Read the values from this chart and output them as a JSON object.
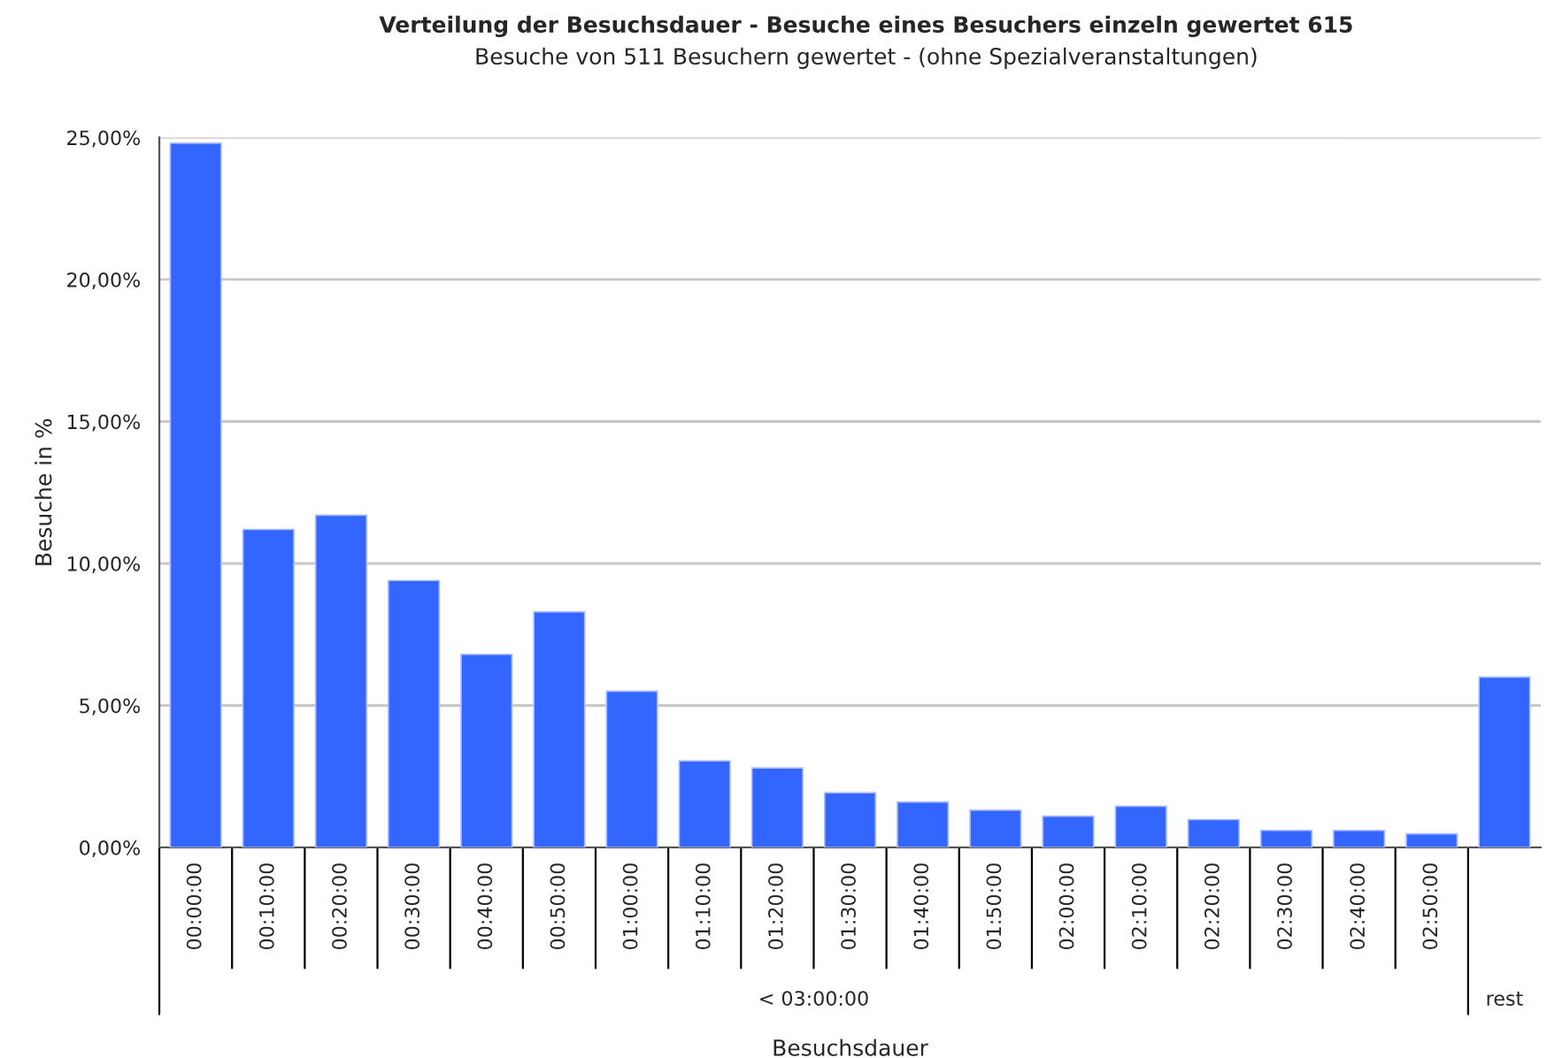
{
  "chart_data": {
    "type": "bar",
    "title": "Verteilung der Besuchsdauer - Besuche eines Besuchers einzeln gewertet 615",
    "subtitle": "Besuche von 511 Besuchern gewertet - (ohne Spezialveranstaltungen)",
    "xlabel": "Besuchsdauer",
    "ylabel": "Besuche in %",
    "categories": [
      "00:00:00",
      "00:10:00",
      "00:20:00",
      "00:30:00",
      "00:40:00",
      "00:50:00",
      "01:00:00",
      "01:10:00",
      "01:20:00",
      "01:30:00",
      "01:40:00",
      "01:50:00",
      "02:00:00",
      "02:10:00",
      "02:20:00",
      "02:30:00",
      "02:40:00",
      "02:50:00",
      null
    ],
    "values": [
      24.8,
      11.2,
      11.7,
      9.4,
      6.8,
      8.3,
      5.5,
      3.05,
      2.8,
      1.93,
      1.6,
      1.31,
      1.1,
      1.45,
      0.98,
      0.6,
      0.6,
      0.48,
      6.0
    ],
    "color": "#3366ff",
    "ylim": [
      0,
      25
    ],
    "yticks": [
      {
        "value": 0,
        "label": "0,00%"
      },
      {
        "value": 5,
        "label": "5,00%"
      },
      {
        "value": 10,
        "label": "10,00%"
      },
      {
        "value": 15,
        "label": "15,00%"
      },
      {
        "value": 20,
        "label": "20,00%"
      },
      {
        "value": 25,
        "label": "25,00%"
      }
    ],
    "grid": "y",
    "annotations": [
      "< 03:00:00",
      "rest"
    ]
  }
}
